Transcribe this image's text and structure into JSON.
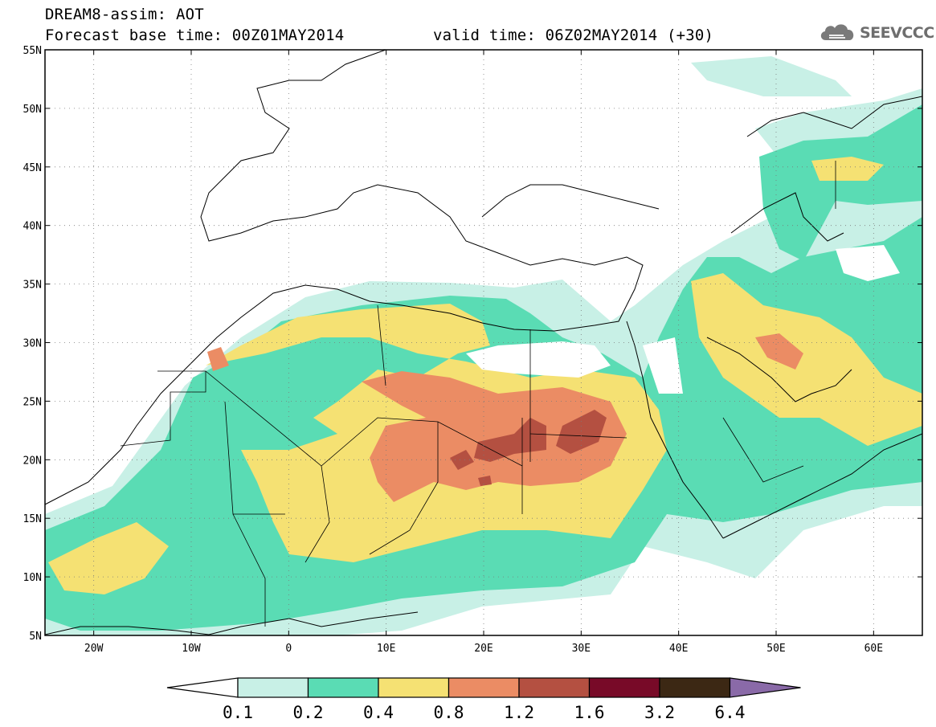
{
  "header": {
    "title": "DREAM8-assim: AOT",
    "base_time": "Forecast base time: 00Z01MAY2014",
    "valid_time": "valid time: 06Z02MAY2014 (+30)"
  },
  "logo": {
    "text": "SEEVCCC",
    "icon": "cloud-icon"
  },
  "map": {
    "lon_range": [
      -25,
      65
    ],
    "lat_range": [
      5,
      55
    ],
    "lat_ticks": [
      "55N",
      "50N",
      "45N",
      "40N",
      "35N",
      "30N",
      "25N",
      "20N",
      "15N",
      "10N",
      "5N"
    ],
    "lat_tick_values": [
      55,
      50,
      45,
      40,
      35,
      30,
      25,
      20,
      15,
      10,
      5
    ],
    "lon_ticks": [
      "20W",
      "10W",
      "0",
      "10E",
      "20E",
      "30E",
      "40E",
      "50E",
      "60E"
    ],
    "lon_tick_values": [
      -20,
      -10,
      0,
      10,
      20,
      30,
      40,
      50,
      60
    ]
  },
  "colorbar": {
    "labels": [
      "0.1",
      "0.2",
      "0.4",
      "0.8",
      "1.2",
      "1.6",
      "3.2",
      "6.4"
    ],
    "colors": [
      "#c8f0e6",
      "#5adcb4",
      "#f5e173",
      "#eb8c64",
      "#b45041",
      "#780a28",
      "#3c2814"
    ],
    "under_color": "#ffffff",
    "over_color": "#8a6aa8"
  }
}
